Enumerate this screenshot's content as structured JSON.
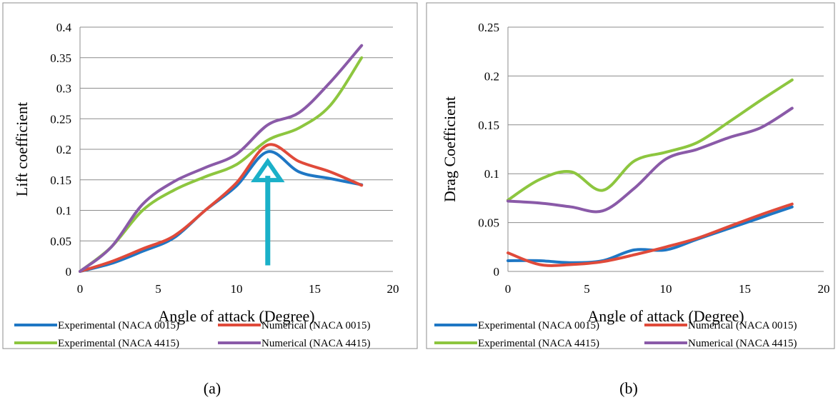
{
  "chart_data": [
    {
      "type": "line",
      "panel_label": "(a)",
      "title": "",
      "xlabel": "Angle of attack (Degree)",
      "ylabel": "Lift coefficient",
      "xlim": [
        0,
        20
      ],
      "ylim": [
        0,
        0.4
      ],
      "xticks": [
        "0",
        "5",
        "10",
        "15",
        "20"
      ],
      "yticks": [
        "0",
        "0.05",
        "0.1",
        "0.15",
        "0.2",
        "0.25",
        "0.3",
        "0.35",
        "0.4"
      ],
      "grid": "horizontal",
      "legend_position": "bottom",
      "annotation": {
        "type": "arrow",
        "color": "#1ab0c8",
        "x": 12,
        "y_from": 0.01,
        "y_to": 0.18
      },
      "series": [
        {
          "name": "Experimental (NACA 0015)",
          "color": "#1f77c4",
          "x": [
            0,
            2,
            4,
            6,
            8,
            10,
            12,
            14,
            16,
            18
          ],
          "y": [
            0,
            0.013,
            0.033,
            0.055,
            0.1,
            0.14,
            0.196,
            0.163,
            0.152,
            0.142
          ]
        },
        {
          "name": "Numerical (NACA 0015)",
          "color": "#e04a3a",
          "x": [
            0,
            2,
            4,
            6,
            8,
            10,
            12,
            14,
            16,
            18
          ],
          "y": [
            0,
            0.016,
            0.037,
            0.058,
            0.1,
            0.145,
            0.207,
            0.18,
            0.163,
            0.141
          ]
        },
        {
          "name": "Experimental (NACA 4415)",
          "color": "#8dc63f",
          "x": [
            0,
            2,
            4,
            6,
            8,
            10,
            12,
            14,
            16,
            18
          ],
          "y": [
            0,
            0.04,
            0.1,
            0.133,
            0.155,
            0.175,
            0.215,
            0.235,
            0.272,
            0.35
          ]
        },
        {
          "name": "Numerical (NACA 4415)",
          "color": "#8a5aa8",
          "x": [
            0,
            2,
            4,
            6,
            8,
            10,
            12,
            14,
            16,
            18
          ],
          "y": [
            0,
            0.04,
            0.11,
            0.147,
            0.17,
            0.192,
            0.24,
            0.26,
            0.31,
            0.37
          ]
        }
      ]
    },
    {
      "type": "line",
      "panel_label": "(b)",
      "title": "",
      "xlabel": "Angle of attack (Degree)",
      "ylabel": "Drag Coefficient",
      "xlim": [
        0,
        20
      ],
      "ylim": [
        0,
        0.25
      ],
      "xticks": [
        "0",
        "5",
        "10",
        "15",
        "20"
      ],
      "yticks": [
        "0",
        "0.05",
        "0.1",
        "0.15",
        "0.2",
        "0.25"
      ],
      "grid": "horizontal",
      "legend_position": "bottom",
      "series": [
        {
          "name": "Experimental (NACA 0015)",
          "color": "#1f77c4",
          "x": [
            0,
            2,
            4,
            6,
            8,
            10,
            12,
            14,
            16,
            18
          ],
          "y": [
            0.011,
            0.011,
            0.009,
            0.011,
            0.022,
            0.022,
            0.033,
            0.044,
            0.055,
            0.066
          ]
        },
        {
          "name": "Numerical (NACA 0015)",
          "color": "#e04a3a",
          "x": [
            0,
            2,
            4,
            6,
            8,
            10,
            12,
            14,
            16,
            18
          ],
          "y": [
            0.019,
            0.007,
            0.007,
            0.01,
            0.017,
            0.025,
            0.034,
            0.046,
            0.058,
            0.069
          ]
        },
        {
          "name": "Experimental (NACA 4415)",
          "color": "#8dc63f",
          "x": [
            0,
            2,
            4,
            6,
            8,
            10,
            12,
            14,
            16,
            18
          ],
          "y": [
            0.073,
            0.094,
            0.102,
            0.083,
            0.113,
            0.122,
            0.132,
            0.153,
            0.175,
            0.196
          ]
        },
        {
          "name": "Numerical (NACA 4415)",
          "color": "#8a5aa8",
          "x": [
            0,
            2,
            4,
            6,
            8,
            10,
            12,
            14,
            16,
            18
          ],
          "y": [
            0.072,
            0.07,
            0.066,
            0.062,
            0.085,
            0.115,
            0.125,
            0.137,
            0.147,
            0.167
          ]
        }
      ]
    }
  ]
}
